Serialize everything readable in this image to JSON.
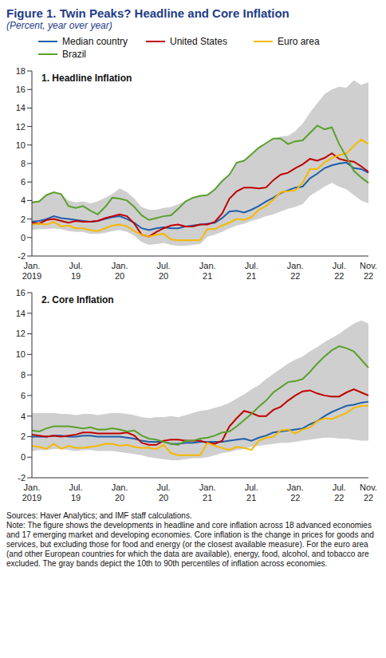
{
  "title": "Figure 1. Twin Peaks? Headline and Core Inflation",
  "subtitle": "(Percent, year over year)",
  "notes": [
    "Sources: Haver Analytics; and IMF staff calculations.",
    "Note: The figure shows the developments in headline and core inflation across 18 advanced economies and 17 emerging market and developing economies. Core inflation is the change in prices for goods and services, but excluding those for food and energy (or the closest available measure). For the euro area (and other European countries for which the data are available), energy, food, alcohol, and tobacco are excluded. The gray bands depict the 10th to 90th percentiles of inflation across economies."
  ],
  "chart_data": [
    {
      "type": "line",
      "title": "1. Headline Inflation",
      "grid": false,
      "categories": [
        "Jan. 2019",
        null,
        null,
        null,
        null,
        null,
        "Jul. 19",
        null,
        null,
        null,
        null,
        null,
        "Jan. 20",
        null,
        null,
        null,
        null,
        null,
        "Jul. 20",
        null,
        null,
        null,
        null,
        null,
        "Jan. 21",
        null,
        null,
        null,
        null,
        null,
        "Jul. 21",
        null,
        null,
        null,
        null,
        null,
        "Jan. 22",
        null,
        null,
        null,
        null,
        null,
        "Jul. 22",
        null,
        null,
        null,
        "Nov. 22"
      ],
      "ylim": [
        -2,
        18
      ],
      "yticks": [
        -2,
        0,
        2,
        4,
        6,
        8,
        10,
        12,
        14,
        16,
        18
      ],
      "band": {
        "color": "#cfcfcf",
        "low": [
          0.8,
          0.9,
          0.9,
          1.0,
          0.9,
          0.7,
          0.6,
          0.6,
          0.4,
          0.4,
          0.5,
          0.7,
          0.8,
          0.6,
          0.2,
          -0.5,
          -0.8,
          -0.7,
          -0.6,
          -0.8,
          -0.9,
          -0.9,
          -0.8,
          -0.7,
          0.1,
          0.3,
          0.6,
          1.0,
          1.3,
          1.5,
          1.8,
          2.0,
          2.3,
          2.5,
          2.8,
          3.1,
          3.3,
          3.6,
          4.5,
          5.0,
          5.5,
          5.9,
          5.5,
          5.2,
          4.6,
          4.0,
          3.7
        ],
        "high": [
          3.9,
          4.0,
          4.6,
          4.9,
          4.7,
          4.0,
          3.8,
          3.9,
          3.7,
          3.9,
          4.3,
          4.7,
          5.3,
          4.9,
          4.2,
          3.3,
          3.0,
          3.0,
          3.2,
          3.3,
          3.6,
          4.0,
          4.3,
          4.5,
          4.6,
          5.2,
          6.1,
          6.8,
          8.1,
          8.3,
          9.0,
          9.7,
          10.2,
          10.7,
          10.9,
          11.0,
          11.5,
          12.3,
          13.5,
          14.5,
          15.5,
          16.0,
          16.3,
          16.2,
          17.0,
          16.5,
          16.8
        ]
      },
      "series": [
        {
          "name": "Median country",
          "color": "#1f5fa8",
          "values": [
            1.7,
            1.8,
            2.0,
            2.3,
            2.1,
            2.0,
            1.9,
            1.8,
            1.7,
            1.8,
            2.0,
            2.2,
            2.3,
            2.0,
            1.6,
            1.0,
            0.8,
            1.0,
            1.1,
            1.0,
            1.0,
            1.2,
            1.3,
            1.4,
            1.5,
            1.6,
            2.1,
            2.8,
            2.9,
            2.7,
            3.0,
            3.4,
            3.9,
            4.3,
            4.8,
            5.1,
            5.4,
            5.5,
            6.4,
            6.9,
            7.5,
            7.8,
            8.0,
            8.1,
            7.5,
            7.4,
            7.0
          ]
        },
        {
          "name": "United States",
          "color": "#c00000",
          "values": [
            1.6,
            1.5,
            1.9,
            2.0,
            1.8,
            1.6,
            1.8,
            1.7,
            1.7,
            1.8,
            2.1,
            2.3,
            2.5,
            2.3,
            1.5,
            0.3,
            0.1,
            0.6,
            1.0,
            1.3,
            1.4,
            1.2,
            1.2,
            1.4,
            1.4,
            1.7,
            2.6,
            4.2,
            5.0,
            5.4,
            5.4,
            5.3,
            5.4,
            6.2,
            6.8,
            7.0,
            7.5,
            7.9,
            8.5,
            8.3,
            8.6,
            9.1,
            8.5,
            8.3,
            8.2,
            7.7,
            7.1
          ]
        },
        {
          "name": "Euro area",
          "color": "#f5b800",
          "values": [
            1.4,
            1.5,
            1.4,
            1.7,
            1.2,
            1.3,
            1.0,
            1.0,
            0.8,
            0.7,
            1.0,
            1.3,
            1.4,
            1.2,
            0.7,
            0.3,
            0.1,
            0.3,
            0.4,
            -0.2,
            -0.3,
            -0.3,
            -0.3,
            -0.3,
            0.9,
            0.9,
            1.3,
            1.6,
            2.0,
            1.9,
            2.2,
            3.0,
            3.4,
            4.1,
            4.9,
            5.0,
            5.1,
            5.9,
            7.4,
            7.4,
            8.1,
            8.6,
            8.9,
            9.1,
            9.9,
            10.6,
            10.1
          ]
        },
        {
          "name": "Brazil",
          "color": "#5aa02c",
          "values": [
            3.8,
            3.9,
            4.6,
            4.9,
            4.7,
            3.4,
            3.2,
            3.4,
            2.9,
            2.5,
            3.3,
            4.3,
            4.2,
            4.0,
            3.3,
            2.4,
            1.9,
            2.1,
            2.3,
            2.4,
            3.1,
            3.9,
            4.3,
            4.5,
            4.6,
            5.2,
            6.1,
            6.8,
            8.1,
            8.3,
            9.0,
            9.7,
            10.2,
            10.7,
            10.7,
            10.1,
            10.4,
            10.5,
            11.3,
            12.1,
            11.7,
            11.9,
            10.1,
            8.7,
            7.2,
            6.5,
            5.9
          ]
        }
      ]
    },
    {
      "type": "line",
      "title": "2. Core Inflation",
      "grid": false,
      "categories": [
        "Jan. 2019",
        null,
        null,
        null,
        null,
        null,
        "Jul. 19",
        null,
        null,
        null,
        null,
        null,
        "Jan. 20",
        null,
        null,
        null,
        null,
        null,
        "Jul. 20",
        null,
        null,
        null,
        null,
        null,
        "Jan. 21",
        null,
        null,
        null,
        null,
        null,
        "Jul. 21",
        null,
        null,
        null,
        null,
        null,
        "Jan. 22",
        null,
        null,
        null,
        null,
        null,
        "Jul. 22",
        null,
        null,
        null,
        "Nov. 22"
      ],
      "ylim": [
        -2,
        16
      ],
      "yticks": [
        -2,
        0,
        2,
        4,
        6,
        8,
        10,
        12,
        14,
        16
      ],
      "band": {
        "color": "#cfcfcf",
        "low": [
          0.6,
          0.7,
          0.7,
          0.8,
          0.8,
          0.7,
          0.6,
          0.7,
          0.7,
          0.6,
          0.6,
          0.6,
          0.5,
          0.4,
          0.3,
          0.2,
          0.0,
          -0.1,
          -0.2,
          -0.3,
          -0.3,
          -0.2,
          -0.1,
          -0.1,
          0.0,
          0.2,
          0.4,
          0.5,
          0.7,
          0.8,
          1.0,
          1.1,
          1.2,
          1.3,
          1.4,
          1.4,
          1.5,
          1.6,
          1.7,
          1.8,
          1.9,
          1.9,
          1.8,
          1.8,
          1.7,
          1.6,
          1.6
        ],
        "high": [
          4.3,
          4.3,
          4.3,
          4.3,
          4.2,
          4.2,
          4.1,
          4.2,
          4.2,
          4.1,
          4.2,
          4.3,
          4.3,
          4.2,
          4.1,
          3.9,
          3.8,
          3.9,
          3.9,
          4.0,
          3.9,
          4.1,
          4.3,
          4.5,
          4.6,
          4.8,
          5.0,
          5.3,
          5.7,
          6.1,
          6.6,
          7.0,
          7.6,
          8.1,
          8.6,
          9.1,
          9.5,
          9.8,
          10.3,
          10.7,
          11.2,
          11.6,
          12.0,
          12.5,
          13.0,
          13.3,
          13.0
        ]
      },
      "series": [
        {
          "name": "Median country",
          "color": "#1f5fa8",
          "values": [
            2.0,
            2.0,
            2.0,
            2.1,
            2.1,
            2.0,
            2.0,
            2.1,
            2.1,
            2.0,
            2.0,
            2.0,
            2.0,
            1.9,
            1.8,
            1.6,
            1.5,
            1.5,
            1.5,
            1.3,
            1.3,
            1.4,
            1.4,
            1.5,
            1.5,
            1.5,
            1.5,
            1.6,
            1.7,
            1.8,
            1.6,
            1.9,
            2.1,
            2.4,
            2.5,
            2.6,
            2.7,
            2.8,
            3.2,
            3.5,
            4.0,
            4.4,
            4.7,
            5.0,
            5.1,
            5.3,
            5.4
          ]
        },
        {
          "name": "United States",
          "color": "#c00000",
          "values": [
            2.2,
            2.1,
            2.0,
            2.1,
            2.0,
            2.1,
            2.2,
            2.4,
            2.4,
            2.3,
            2.3,
            2.3,
            2.3,
            2.4,
            2.1,
            1.4,
            1.2,
            1.2,
            1.6,
            1.7,
            1.7,
            1.6,
            1.6,
            1.6,
            1.4,
            1.3,
            1.6,
            3.0,
            3.8,
            4.5,
            4.3,
            4.0,
            4.0,
            4.6,
            4.9,
            5.5,
            6.0,
            6.4,
            6.5,
            6.2,
            6.0,
            5.9,
            5.9,
            6.3,
            6.6,
            6.3,
            6.0
          ]
        },
        {
          "name": "Euro area",
          "color": "#f5b800",
          "values": [
            1.1,
            1.0,
            0.8,
            1.3,
            0.8,
            1.1,
            0.9,
            0.9,
            1.0,
            1.1,
            1.3,
            1.3,
            1.1,
            1.2,
            1.0,
            0.9,
            0.9,
            0.8,
            1.2,
            0.4,
            0.2,
            0.2,
            0.2,
            0.2,
            1.4,
            1.1,
            0.9,
            0.7,
            1.0,
            0.9,
            0.7,
            1.6,
            1.9,
            2.0,
            2.6,
            2.7,
            2.3,
            2.7,
            2.9,
            3.5,
            3.8,
            3.7,
            4.0,
            4.3,
            4.8,
            5.0,
            5.0
          ]
        },
        {
          "name": "Brazil",
          "color": "#5aa02c",
          "values": [
            2.6,
            2.5,
            2.8,
            3.0,
            3.0,
            3.0,
            2.9,
            2.8,
            2.9,
            2.7,
            2.7,
            2.8,
            2.7,
            2.5,
            2.6,
            2.1,
            1.8,
            1.7,
            1.5,
            1.3,
            1.2,
            1.6,
            1.6,
            1.8,
            1.9,
            2.1,
            2.4,
            2.5,
            3.0,
            3.6,
            4.2,
            4.9,
            5.5,
            6.3,
            6.8,
            7.3,
            7.4,
            7.6,
            8.3,
            9.1,
            9.8,
            10.4,
            10.8,
            10.6,
            10.3,
            9.5,
            8.7
          ]
        }
      ]
    }
  ]
}
